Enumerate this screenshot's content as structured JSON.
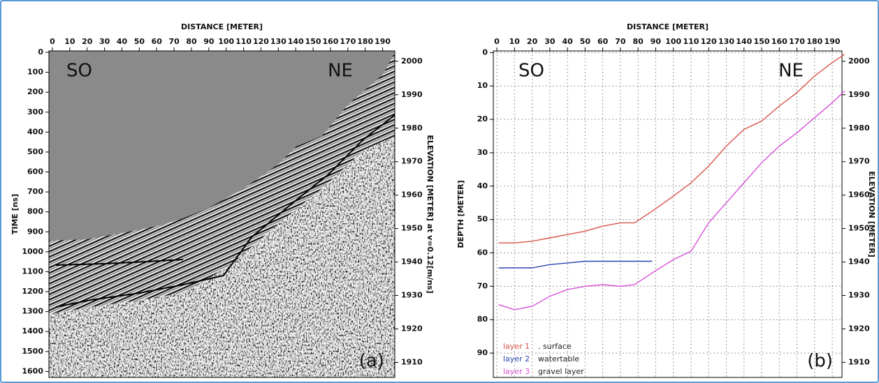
{
  "chart_data": [
    {
      "type": "image",
      "x_label": "DISTANCE [METER]",
      "y_label": "TIME [ns]",
      "y2_label": "ELEVATION [METER] at v=0.12[m/ns]",
      "xlim": [
        -2,
        197
      ],
      "xticks": [
        0,
        10,
        20,
        30,
        40,
        50,
        60,
        70,
        80,
        90,
        100,
        110,
        120,
        130,
        140,
        150,
        160,
        170,
        180,
        190
      ],
      "ylim": [
        -7,
        1630
      ],
      "y_inverted": true,
      "yticks": [
        0,
        100,
        200,
        300,
        400,
        500,
        600,
        700,
        800,
        900,
        1000,
        1100,
        1200,
        1300,
        1400,
        1500,
        1600
      ],
      "y2lim": [
        1905.5,
        2003.1
      ],
      "y2ticks": [
        1910,
        1920,
        1930,
        1940,
        1950,
        1960,
        1970,
        1980,
        1990,
        2000
      ],
      "annotations": [
        "SO",
        "NE",
        "(a)"
      ]
    },
    {
      "type": "line",
      "x_label": "DISTANCE [METER]",
      "y_label": "DEPTH [METER]",
      "y2_label": "ELEVATION [METER]",
      "xlim": [
        -2,
        195.5
      ],
      "xticks": [
        0,
        10,
        20,
        30,
        40,
        50,
        60,
        70,
        80,
        90,
        100,
        110,
        120,
        130,
        140,
        150,
        160,
        170,
        180,
        190
      ],
      "ylim": [
        -0.5,
        97.3
      ],
      "y_inverted": true,
      "yticks": [
        0,
        10,
        20,
        30,
        40,
        50,
        60,
        70,
        80,
        90
      ],
      "y2lim": [
        1905.5,
        2003.1
      ],
      "y2ticks": [
        1910,
        1920,
        1930,
        1940,
        1950,
        1960,
        1970,
        1980,
        1990,
        2000
      ],
      "grid": true,
      "legend": "lower left",
      "x": [
        1,
        10,
        20,
        30,
        40,
        50,
        60,
        70,
        78,
        88,
        100,
        110,
        120,
        130,
        140,
        150,
        160,
        170,
        180,
        190,
        197
      ],
      "series": [
        {
          "name": "layer 1",
          "description": ". surface",
          "color": "#d9534a",
          "values": [
            57,
            57,
            56.5,
            55.5,
            54.5,
            53.5,
            52,
            51,
            51,
            47.5,
            43,
            39,
            34,
            28,
            23,
            20.5,
            16,
            12,
            7,
            3,
            0.5
          ]
        },
        {
          "name": "layer 2",
          "description": "watertable",
          "color": "#2a44b0",
          "values": [
            64.5,
            64.5,
            64.5,
            63.5,
            63,
            62.5,
            62.5,
            62.5,
            62.5,
            62.5,
            null,
            null,
            null,
            null,
            null,
            null,
            null,
            null,
            null,
            null,
            null
          ]
        },
        {
          "name": "layer 3",
          "description": "gravel layer",
          "color": "#d64fd8",
          "values": [
            75.5,
            77,
            76,
            73,
            71,
            70,
            69.5,
            70,
            69.5,
            66,
            62,
            59.5,
            51,
            45,
            39,
            33,
            28,
            24,
            19.5,
            15,
            11.5
          ]
        }
      ],
      "annotations": [
        "SO",
        "NE",
        "(b)"
      ]
    }
  ]
}
